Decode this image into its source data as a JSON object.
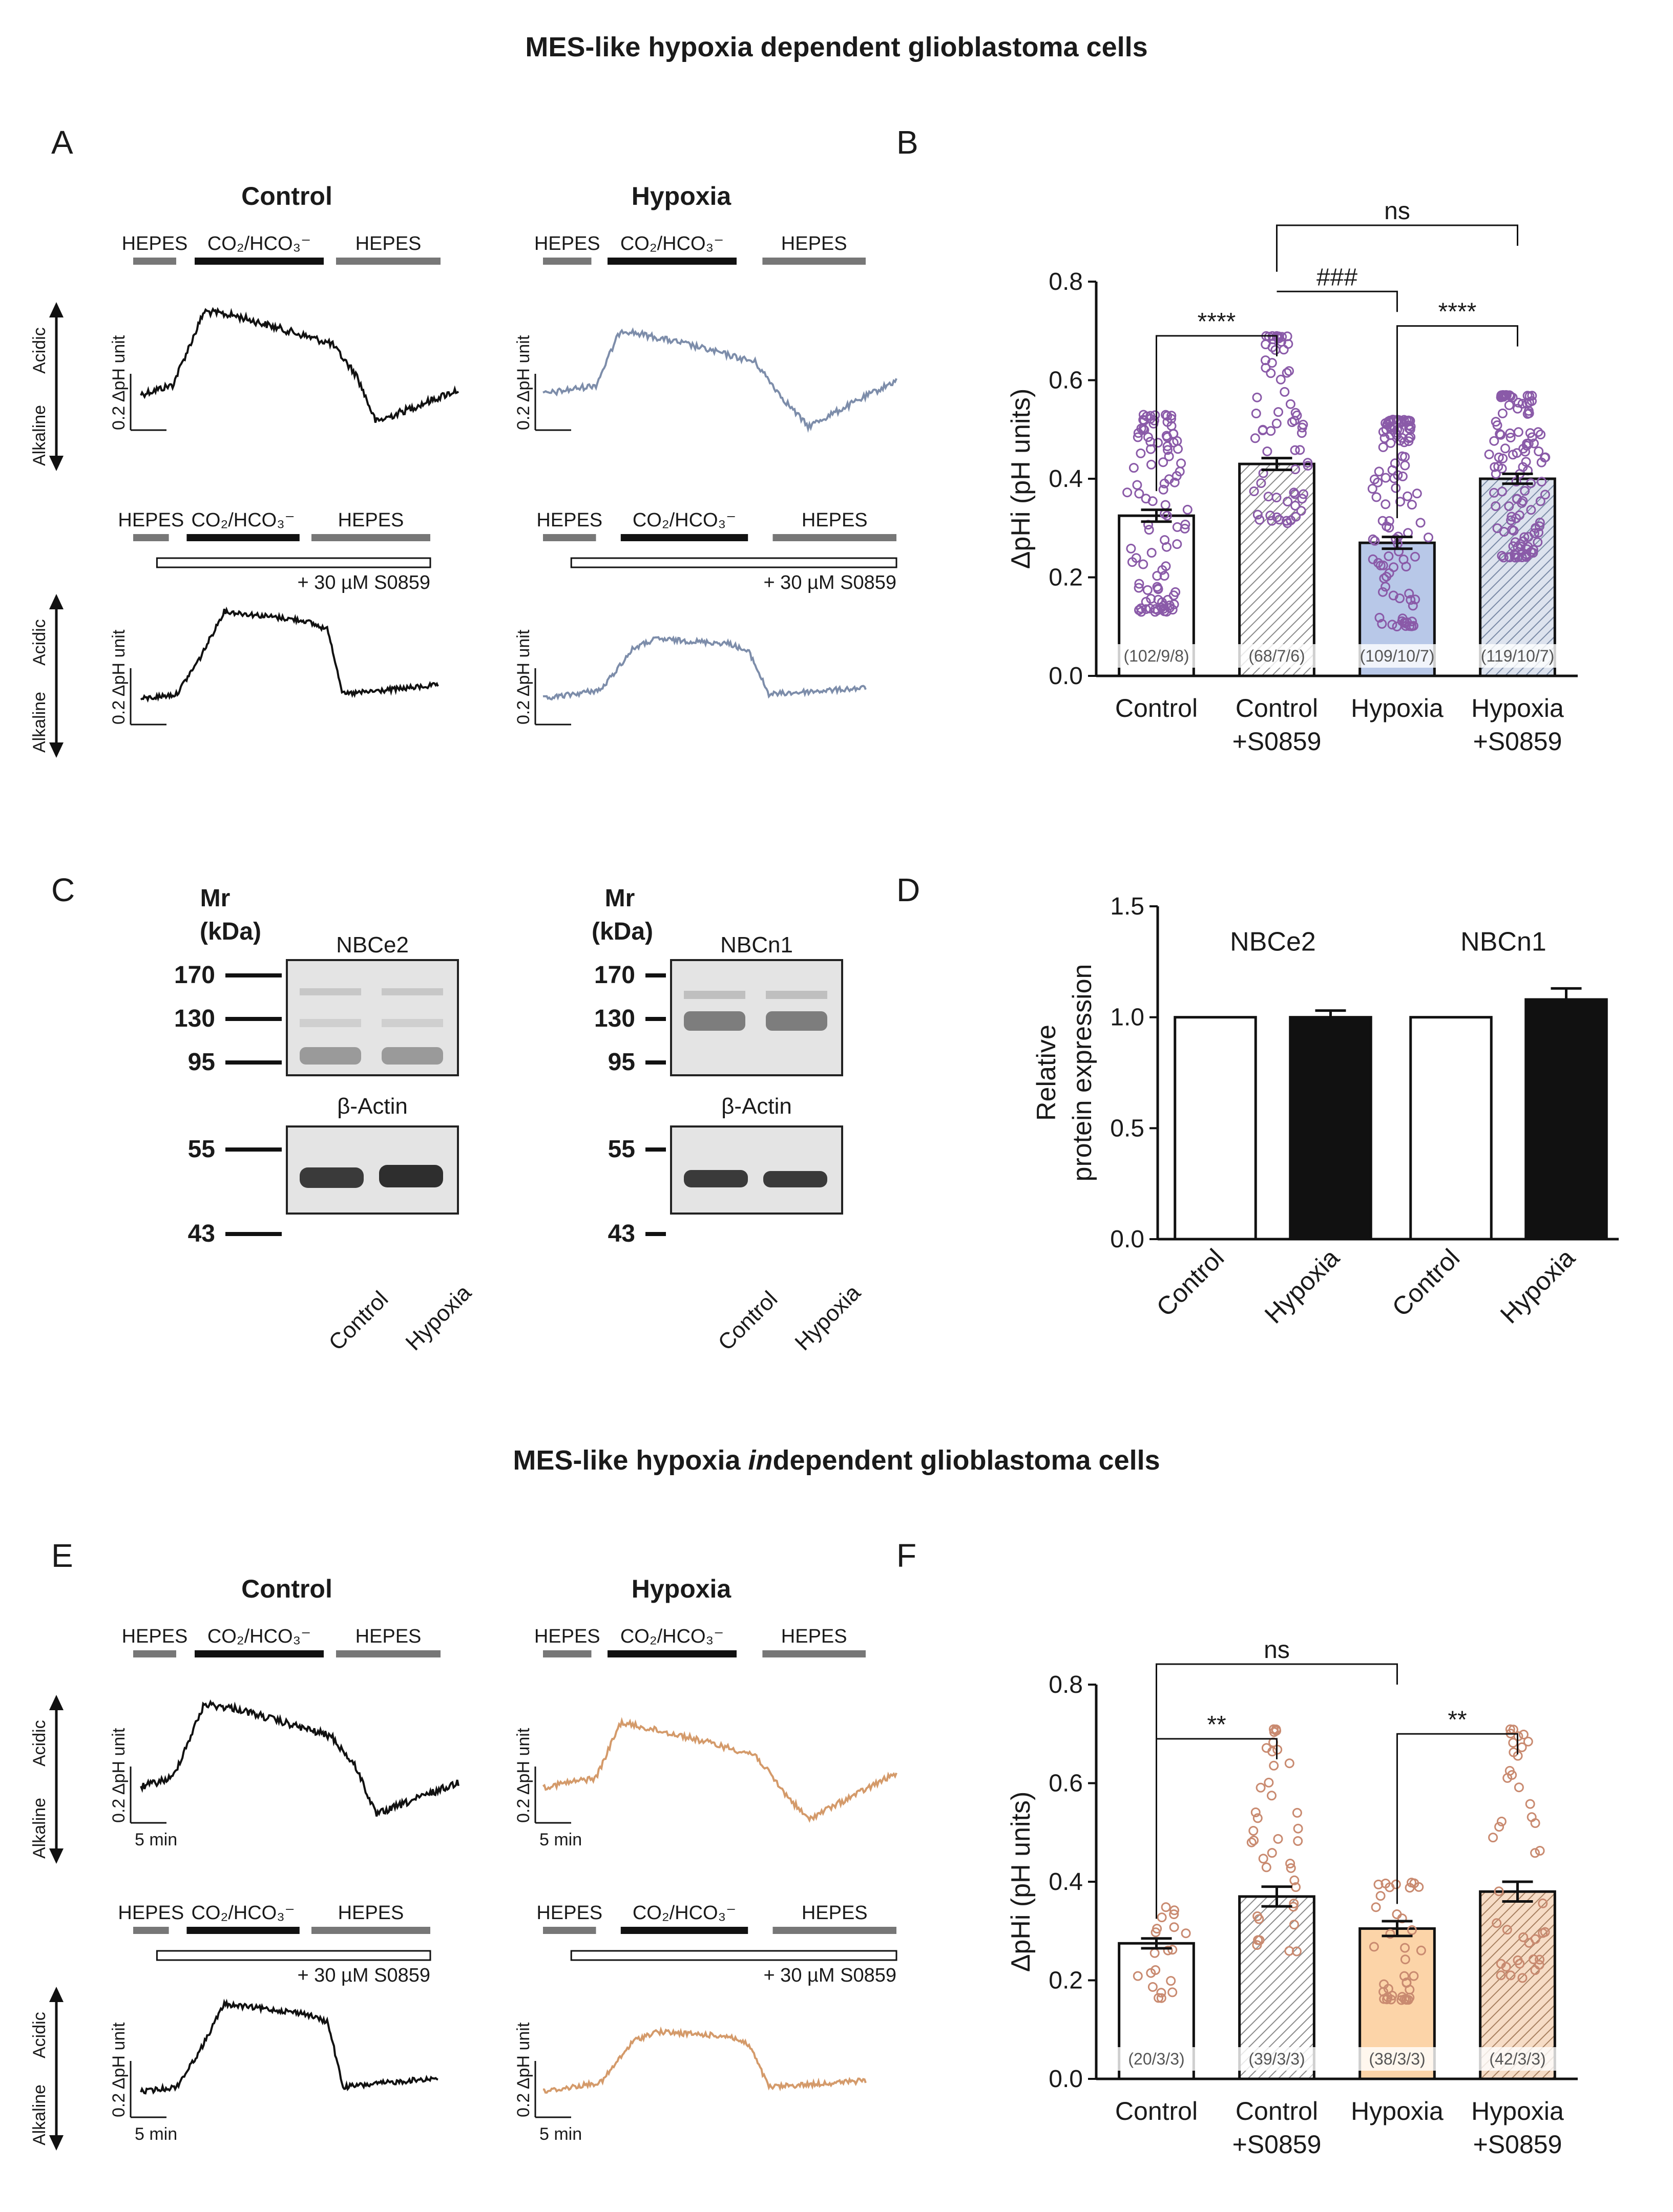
{
  "titles": {
    "top": "MES-like hypoxia dependent glioblastoma cells",
    "bottom_pre": "MES-like hypoxia ",
    "bottom_ital": "in",
    "bottom_post": "dependent glioblastoma cells"
  },
  "panel_letters": [
    "A",
    "B",
    "C",
    "D",
    "E",
    "F"
  ],
  "traces": {
    "cond_control": "Control",
    "cond_hypoxia": "Hypoxia",
    "hepes": "HEPES",
    "co2": "CO₂/HCO₃⁻",
    "drug": "+ 30 µM S0859",
    "acidic": "Acidic",
    "alkaline": "Alkaline",
    "scale_y": "0.2 ΔpH unit",
    "scale_x": "5 min",
    "colors": {
      "control": "#111111",
      "hypoxia_dep": "#7d8daa",
      "hypoxia_indep": "#d49a6a",
      "bar": "#111111",
      "hepes_bar": "#777777"
    }
  },
  "chart_data": [
    {
      "id": "B",
      "type": "bar",
      "title": "",
      "ylabel": "ΔpHi (pH units)",
      "ylim": [
        0.0,
        0.8
      ],
      "yticks": [
        "0.0",
        "0.2",
        "0.4",
        "0.6",
        "0.8"
      ],
      "categories": [
        [
          "Control",
          ""
        ],
        [
          "Control",
          "+S0859"
        ],
        [
          "Hypoxia",
          ""
        ],
        [
          "Hypoxia",
          "+S0859"
        ]
      ],
      "values": [
        0.325,
        0.43,
        0.27,
        0.4
      ],
      "errors": [
        0.012,
        0.012,
        0.012,
        0.01
      ],
      "n_labels": [
        "(102/9/8)",
        "(68/7/6)",
        "(109/10/7)",
        "(119/10/7)"
      ],
      "fills": [
        "#ffffff",
        "hatch",
        "#b8c8e8",
        "hatch"
      ],
      "point_color": "#8a5aa8",
      "points_per_bar": [
        102,
        68,
        109,
        119
      ],
      "point_ranges": [
        [
          0.13,
          0.53
        ],
        [
          0.31,
          0.69
        ],
        [
          0.1,
          0.52
        ],
        [
          0.24,
          0.57
        ]
      ],
      "annotations": [
        {
          "from": 0,
          "to": 1,
          "label": "****"
        },
        {
          "from": 1,
          "to": 2,
          "label": "###"
        },
        {
          "from": 2,
          "to": 3,
          "label": "****"
        },
        {
          "from": 1,
          "to": 3,
          "label": "ns"
        }
      ]
    },
    {
      "id": "D",
      "type": "bar",
      "ylabel": "Relative protein expression",
      "ylim": [
        0.0,
        1.5
      ],
      "yticks": [
        "0.0",
        "0.5",
        "1.0",
        "1.5"
      ],
      "groups": [
        "NBCe2",
        "NBCn1"
      ],
      "categories": [
        "Control",
        "Hypoxia",
        "Control",
        "Hypoxia"
      ],
      "values": [
        1.0,
        1.0,
        1.0,
        1.08
      ],
      "errors": [
        0.0,
        0.03,
        0.0,
        0.05
      ],
      "fills": [
        "#ffffff",
        "#111111",
        "#ffffff",
        "#111111"
      ]
    },
    {
      "id": "F",
      "type": "bar",
      "ylabel": "ΔpHi (pH units)",
      "ylim": [
        0.0,
        0.8
      ],
      "yticks": [
        "0.0",
        "0.2",
        "0.4",
        "0.6",
        "0.8"
      ],
      "categories": [
        [
          "Control",
          ""
        ],
        [
          "Control",
          "+S0859"
        ],
        [
          "Hypoxia",
          ""
        ],
        [
          "Hypoxia",
          "+S0859"
        ]
      ],
      "values": [
        0.275,
        0.37,
        0.305,
        0.38
      ],
      "errors": [
        0.01,
        0.02,
        0.015,
        0.02
      ],
      "n_labels": [
        "(20/3/3)",
        "(39/3/3)",
        "(38/3/3)",
        "(42/3/3)"
      ],
      "fills": [
        "#ffffff",
        "hatch",
        "#fcd4a8",
        "hatch-orange"
      ],
      "point_color": "#c98a70",
      "points_per_bar": [
        20,
        39,
        38,
        42
      ],
      "point_ranges": [
        [
          0.16,
          0.35
        ],
        [
          0.23,
          0.71
        ],
        [
          0.16,
          0.4
        ],
        [
          0.2,
          0.71
        ]
      ],
      "annotations": [
        {
          "from": 0,
          "to": 1,
          "label": "**"
        },
        {
          "from": 2,
          "to": 3,
          "label": "**"
        },
        {
          "from": 0,
          "to": 2,
          "label": "ns"
        }
      ]
    }
  ],
  "blots": {
    "mr": "Mr",
    "kda": "(kDa)",
    "actin": "β-Actin",
    "left": {
      "target": "NBCe2",
      "markers_top": [
        "170",
        "130",
        "95"
      ],
      "markers_bottom": [
        "55",
        "43"
      ]
    },
    "right": {
      "target": "NBCn1",
      "markers_top": [
        "170",
        "130",
        "95"
      ],
      "markers_bottom": [
        "55",
        "43"
      ]
    },
    "lanes": [
      "Control",
      "Hypoxia"
    ]
  }
}
